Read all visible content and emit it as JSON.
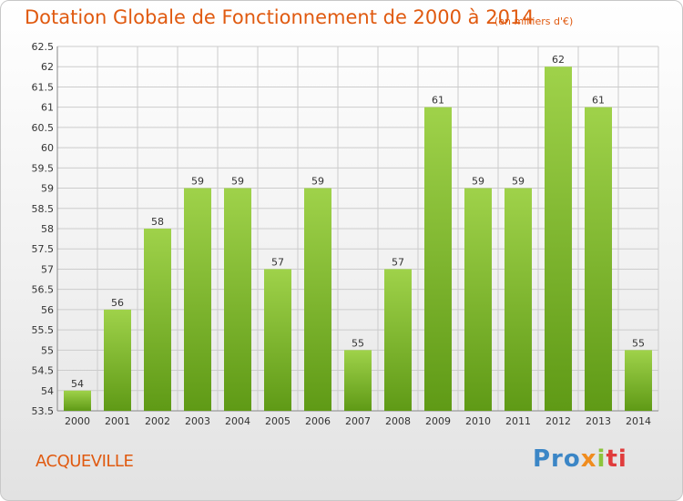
{
  "title": "Dotation Globale de Fonctionnement de 2000 à 2014",
  "subtitle": "(en milliers d'€)",
  "town": "ACQUEVILLE",
  "logo": [
    "Pro",
    "x",
    "i",
    "ti"
  ],
  "colors": {
    "title": "#e05a10",
    "bar_light": "#9fd24a",
    "bar_dark": "#5f9a16",
    "grid": "#cccccc"
  },
  "chart_data": {
    "type": "bar",
    "title": "Dotation Globale de Fonctionnement de 2000 à 2014",
    "subtitle": "(en milliers d'€)",
    "categories": [
      "2000",
      "2001",
      "2002",
      "2003",
      "2004",
      "2005",
      "2006",
      "2007",
      "2008",
      "2009",
      "2010",
      "2011",
      "2012",
      "2013",
      "2014"
    ],
    "values": [
      54,
      56,
      58,
      59,
      59,
      57,
      59,
      55,
      57,
      61,
      59,
      59,
      62,
      61,
      55
    ],
    "data_labels": [
      "54",
      "56",
      "58",
      "59",
      "59",
      "57",
      "59",
      "55",
      "57",
      "61",
      "59",
      "59",
      "62",
      "61",
      "55"
    ],
    "ylim": [
      53.5,
      62.5
    ],
    "yticks": [
      "53.5",
      "54",
      "54.5",
      "55",
      "55.5",
      "56",
      "56.5",
      "57",
      "57.5",
      "58",
      "58.5",
      "59",
      "59.5",
      "60",
      "60.5",
      "61",
      "61.5",
      "62",
      "62.5"
    ],
    "grid": true,
    "legend": "none"
  }
}
